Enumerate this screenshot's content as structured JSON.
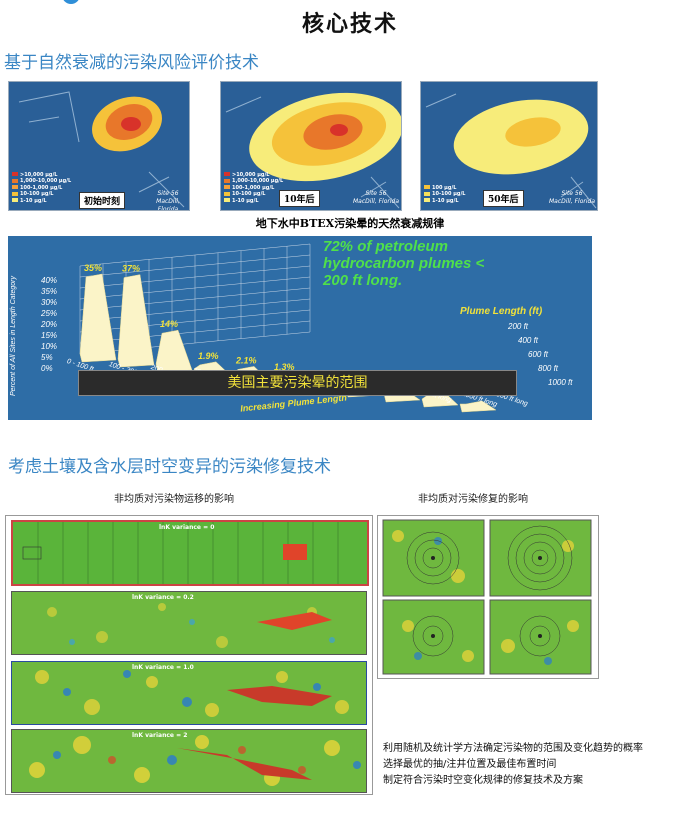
{
  "page_title": "核心技术",
  "section1": {
    "title": "基于自然衰减的污染风险评价技术",
    "maps": [
      {
        "label": "初始时刻",
        "site": "Site 56",
        "place": "MacDill, Florida"
      },
      {
        "label": "10年后",
        "site": "Site 56",
        "place": "MacDill, Florida"
      },
      {
        "label": "50年后",
        "site": "Site 56",
        "place": "MacDill, Florida"
      }
    ],
    "legend_5": [
      ">10,000 µg/L",
      "1,000-10,000 µg/L",
      "100-1,000 µg/L",
      "10-100 µg/L",
      "1-10 µg/L"
    ],
    "legend_3": [
      "100 µg/L",
      "10-100 µg/L",
      "1-10 µg/L"
    ],
    "colors": {
      "map_bg": "#2a5f97",
      "plume_outer": "#f7ec7a",
      "plume_mid": "#f5c23a",
      "plume_inner": "#e8772a",
      "plume_core": "#d8322a"
    },
    "btex_caption": "地下水中BTEX污染晕的天然衰减规律",
    "chart": {
      "headline": [
        "72% of petroleum",
        "hydrocarbon plumes <",
        "200 ft long."
      ],
      "ylabel": "Percent of All Sites in Length Category",
      "y_ticks": [
        "40%",
        "35%",
        "30%",
        "25%",
        "20%",
        "15%",
        "10%",
        "5%",
        "0%"
      ],
      "axis_title": "Plume Length (ft)",
      "back_ticks": [
        "200 ft",
        "400 ft",
        "600 ft",
        "800 ft",
        "1000 ft"
      ],
      "front_ticks": [
        "0 - 100 ft",
        "100 - 200 ft",
        "200 - 300 ft",
        "300 - 400 ft",
        "400 - 500 ft",
        "500 - 600 ft",
        "600 - 700 ft",
        "700 - 800 ft",
        "800 - 900 ft long",
        "900 - 1000 ft long",
        "> 1000 ft long"
      ],
      "increasing_label": "Increasing Plume Length",
      "banner": "美国主要污染晕的范围"
    },
    "chart_data": {
      "type": "bar",
      "categories": [
        "0 - 100 ft",
        "100 - 200 ft",
        "200 - 300 ft",
        "300 - 400 ft",
        "400 - 500 ft",
        "500 - 600 ft",
        "600 - 700 ft",
        "700 - 800 ft",
        "800 - 900 ft",
        "900 - 1000 ft",
        "> 1000 ft"
      ],
      "values": [
        35,
        37,
        14,
        1.9,
        2.1,
        1.3,
        0.5,
        0.5,
        0.3,
        1.9,
        0
      ],
      "value_labels": [
        "35%",
        "37%",
        "14%",
        "1.9%",
        "2.1%",
        "1.3%",
        "0.5%",
        "0.5%",
        "0.3%",
        "1.9%",
        ""
      ],
      "ylabel": "Percent of All Sites in Length Category",
      "ylim": [
        0,
        40
      ]
    }
  },
  "section2": {
    "title": "考虑土壤及含水层时空变异的污染修复技术",
    "left_caption": "非均质对污染物运移的影响",
    "right_caption": "非均质对污染修复的影响",
    "strips": [
      "lnK variance = 0",
      "lnK variance = 0.2",
      "lnK variance = 1.0",
      "lnK variance = 2"
    ],
    "notes": [
      "利用随机及统计学方法确定污染物的范围及变化趋势的概率",
      "选择最优的抽/注井位置及最佳布置时间",
      "制定符合污染时空变化规律的修复技术及方案"
    ]
  }
}
